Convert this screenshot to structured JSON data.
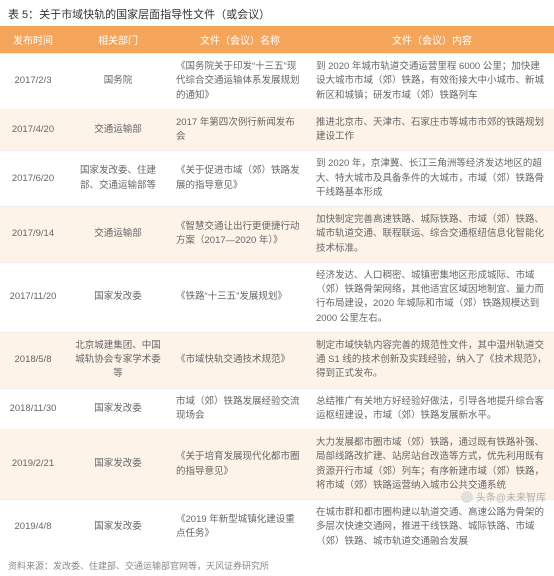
{
  "title": "表 5：关于市域快轨的国家层面指导性文件（或会议）",
  "columns": [
    "发布时间",
    "相关部门",
    "文件（会议）名称",
    "文件（会议）内容"
  ],
  "colors": {
    "header_bg": "#f5a55a",
    "header_text": "#ffffff",
    "alt_row_bg": "#fdf3e9",
    "body_text": "#666666",
    "title_text": "#333333",
    "footer_text": "#888888"
  },
  "rows": [
    {
      "date": "2017/2/3",
      "dept": "国务院",
      "name": "《国务院关于印发“十三五”现代综合交通运输体系发展规划的通知》",
      "content": "到 2020 年城市轨道交通运营里程 6000 公里；加快建设大城市市域（郊）铁路，有效衔接大中小城市、新城新区和城镇；研发市域（郊）铁路列车"
    },
    {
      "date": "2017/4/20",
      "dept": "交通运输部",
      "name": "2017 年第四次例行新闻发布会",
      "content": "推进北京市、天津市、石家庄市等城市市郊的铁路规划建设工作"
    },
    {
      "date": "2017/6/20",
      "dept": "国家发改委、住建部、交通运输部等",
      "name": "《关于促进市域（郊）铁路发展的指导意见》",
      "content": "到 2020 年，京津冀、长江三角洲等经济发达地区的超大、特大城市及具备条件的大城市，市域（郊）铁路骨干线路基本形成"
    },
    {
      "date": "2017/9/14",
      "dept": "交通运输部",
      "name": "《智慧交通让出行更便捷行动方案（2017—2020 年）》",
      "content": "加快制定完善高速铁路、城际铁路、市域（郊）铁路、城市轨道交通、联程联运、综合交通枢纽信息化智能化技术标准。"
    },
    {
      "date": "2017/11/20",
      "dept": "国家发改委",
      "name": "《铁路“十三五”发展规划》",
      "content": "经济发达、人口稠密、城镇密集地区形成城际、市域（郊）铁路骨架网络，其他适宜区域因地制宜、量力而行布局建设，2020 年城际和市域（郊）铁路规模达到 2000 公里左右。"
    },
    {
      "date": "2018/5/8",
      "dept": "北京城建集团、中国城轨协会专家学术委等",
      "name": "《市域快轨交通技术规范》",
      "content": "制定市域快轨内容完善的规范性文件，其中温州轨道交通 S1 线的技术创新及实践经验，纳入了《技术规范》，得到正式发布。"
    },
    {
      "date": "2018/11/30",
      "dept": "国家发改委",
      "name": "市域（郊）铁路发展经验交流现场会",
      "content": "总结推广有关地方好经验好做法，引导各地提升综合客运枢纽建设，市域（郊）铁路发展新水平。"
    },
    {
      "date": "2019/2/21",
      "dept": "国家发改委",
      "name": "《关于培育发展现代化都市圈的指导意见》",
      "content": "大力发展都市圈市域（郊）铁路，通过既有铁路补强、局部线路改扩建、站房站台改造等方式，优先利用既有资源开行市域（郊）列车；有序新建市域（郊）铁路，将市域（郊）铁路运营纳入城市公共交通系统"
    },
    {
      "date": "2019/4/8",
      "dept": "国家发改委",
      "name": "《2019 年新型城镇化建设重点任务》",
      "content": "在城市群和都市圈构建以轨道交通、高速公路为骨架的多层次快速交通网，推进干线铁路、城际铁路、市域（郊）铁路、城市轨道交通融合发展"
    }
  ],
  "footer": "资料来源：发改委、住建部、交通运输部官网等，天风证券研究所",
  "watermark": "头条@未来智库"
}
